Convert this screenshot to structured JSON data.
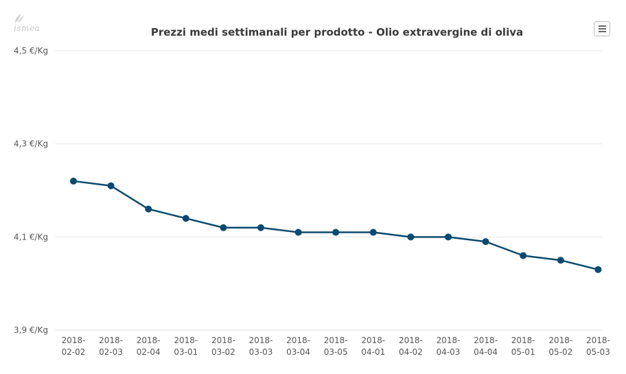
{
  "logo": {
    "text": "ismea"
  },
  "menu": {
    "icon": "hamburger-menu-icon"
  },
  "colors": {
    "line": "#0b4a6e",
    "grid": "#e6e6e6",
    "text": "#555555"
  },
  "chart_data": {
    "type": "line",
    "title": "Prezzi medi settimanali per prodotto - Olio extravergine di oliva",
    "xlabel": "",
    "ylabel": "",
    "ylim": [
      3.9,
      4.5
    ],
    "yticks": [
      {
        "value": 4.5,
        "label": "4,5 €/Kg"
      },
      {
        "value": 4.3,
        "label": "4,3 €/Kg"
      },
      {
        "value": 4.1,
        "label": "4,1 €/Kg"
      },
      {
        "value": 3.9,
        "label": "3,9 €/Kg"
      }
    ],
    "categories": [
      [
        "2018-",
        "02-02"
      ],
      [
        "2018-",
        "02-03"
      ],
      [
        "2018-",
        "02-04"
      ],
      [
        "2018-",
        "03-01"
      ],
      [
        "2018-",
        "03-02"
      ],
      [
        "2018-",
        "03-03"
      ],
      [
        "2018-",
        "03-04"
      ],
      [
        "2018-",
        "03-05"
      ],
      [
        "2018-",
        "04-01"
      ],
      [
        "2018-",
        "04-02"
      ],
      [
        "2018-",
        "04-03"
      ],
      [
        "2018-",
        "04-04"
      ],
      [
        "2018-",
        "05-01"
      ],
      [
        "2018-",
        "05-02"
      ],
      [
        "2018-",
        "05-03"
      ]
    ],
    "series": [
      {
        "name": "Olio extravergine di oliva",
        "values": [
          4.22,
          4.21,
          4.16,
          4.14,
          4.12,
          4.12,
          4.11,
          4.11,
          4.11,
          4.1,
          4.1,
          4.09,
          4.06,
          4.05,
          4.03
        ]
      }
    ],
    "grid": true,
    "legend": "none"
  }
}
